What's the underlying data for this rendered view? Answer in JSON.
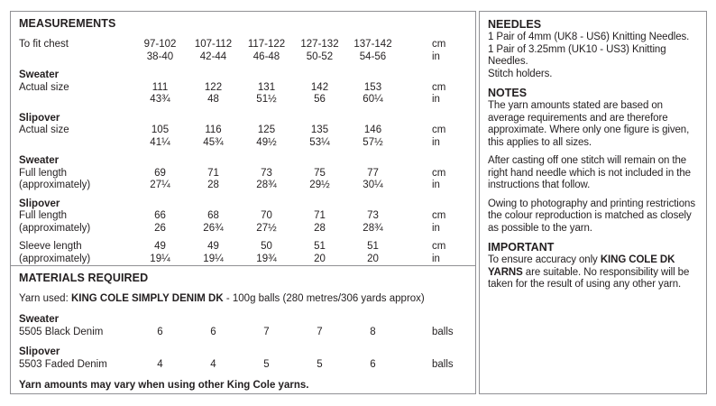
{
  "measurements": {
    "title": "MEASUREMENTS",
    "lines": [
      {
        "label": "To fit chest",
        "cells": [
          "97-102",
          "107-112",
          "117-122",
          "127-132",
          "137-142"
        ],
        "unit": "cm"
      },
      {
        "label": "",
        "cells": [
          "38-40",
          "42-44",
          "46-48",
          "50-52",
          "54-56"
        ],
        "unit": "in"
      },
      {
        "label": "Sweater"
      },
      {
        "label": "Actual size",
        "cells": [
          "111",
          "122",
          "131",
          "142",
          "153"
        ],
        "unit": "cm"
      },
      {
        "label": "",
        "cells": [
          "43¾",
          "48",
          "51½",
          "56",
          "60¼"
        ],
        "unit": "in"
      },
      {
        "label": "Slipover"
      },
      {
        "label": "Actual size",
        "cells": [
          "105",
          "116",
          "125",
          "135",
          "146"
        ],
        "unit": "cm"
      },
      {
        "label": "",
        "cells": [
          "41¼",
          "45¾",
          "49½",
          "53¼",
          "57½"
        ],
        "unit": "in"
      },
      {
        "label": "Sweater"
      },
      {
        "label": "Full length",
        "cells": [
          "69",
          "71",
          "73",
          "75",
          "77"
        ],
        "unit": "cm"
      },
      {
        "label": "(approximately)",
        "cells": [
          "27¼",
          "28",
          "28¾",
          "29½",
          "30¼"
        ],
        "unit": "in"
      },
      {
        "label": "Slipover"
      },
      {
        "label": "Full length",
        "cells": [
          "66",
          "68",
          "70",
          "71",
          "73"
        ],
        "unit": "cm"
      },
      {
        "label": "(approximately)",
        "cells": [
          "26",
          "26¾",
          "27½",
          "28",
          "28¾"
        ],
        "unit": "in"
      },
      {
        "label": "Sleeve length",
        "cells": [
          "49",
          "49",
          "50",
          "51",
          "51"
        ],
        "unit": "cm"
      },
      {
        "label": "(approximately)",
        "cells": [
          "19¼",
          "19¼",
          "19¾",
          "20",
          "20"
        ],
        "unit": "in"
      }
    ]
  },
  "materials": {
    "title": "MATERIALS REQUIRED",
    "yarn_line": {
      "prefix": "Yarn used: ",
      "bold": "KING COLE SIMPLY DENIM DK",
      "suffix": " - 100g balls (280 metres/306 yards approx)"
    },
    "rows": [
      {
        "group": "Sweater",
        "label": "5505 Black Denim",
        "cells": [
          "6",
          "6",
          "7",
          "7",
          "8"
        ],
        "unit": "balls"
      },
      {
        "group": "Slipover",
        "label": "5503 Faded Denim",
        "cells": [
          "4",
          "4",
          "5",
          "5",
          "6"
        ],
        "unit": "balls"
      }
    ],
    "note": "Yarn amounts may vary when using other King Cole yarns."
  },
  "needles": {
    "title": "NEEDLES",
    "items": [
      "1 Pair of 4mm (UK8 - US6) Knitting Needles.",
      "1 Pair of 3.25mm (UK10 - US3) Knitting Needles.",
      "Stitch holders."
    ]
  },
  "notes": {
    "title": "NOTES",
    "paragraphs": [
      "The yarn amounts stated are based on average requirements and are therefore approximate. Where only one figure is given, this applies to all sizes.",
      "After casting off one stitch will remain on the right hand needle which is not included in the instructions that follow.",
      "Owing to photography and printing restrictions the colour reproduction is matched as closely as possible to the yarn."
    ]
  },
  "important": {
    "title": "IMPORTANT",
    "prefix": "To ensure accuracy only ",
    "bold": "KING COLE DK YARNS",
    "suffix": " are suitable. No responsibility will be taken for the result of using any other yarn."
  }
}
